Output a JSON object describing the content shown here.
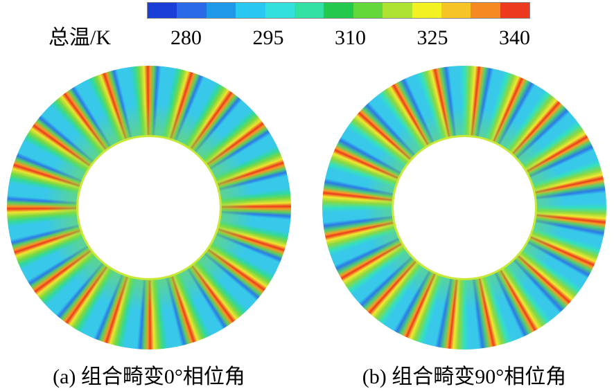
{
  "chart_data": {
    "type": "contour-colorbar",
    "colorbar_label": "总温/K",
    "xlim": [
      270,
      340
    ],
    "xticks": [
      280,
      295,
      310,
      325,
      340
    ],
    "colors": [
      "#1a3fd6",
      "#2a6ae8",
      "#1f98ea",
      "#28c8f0",
      "#34e0dc",
      "#32e0a4",
      "#22c94c",
      "#62d83a",
      "#aee232",
      "#f2f222",
      "#f6c424",
      "#f68a22",
      "#ec3a1e"
    ],
    "panels": [
      {
        "caption": "(a) 组合畸变0°相位角"
      },
      {
        "caption": "(b) 组合畸变90°相位角"
      }
    ]
  }
}
